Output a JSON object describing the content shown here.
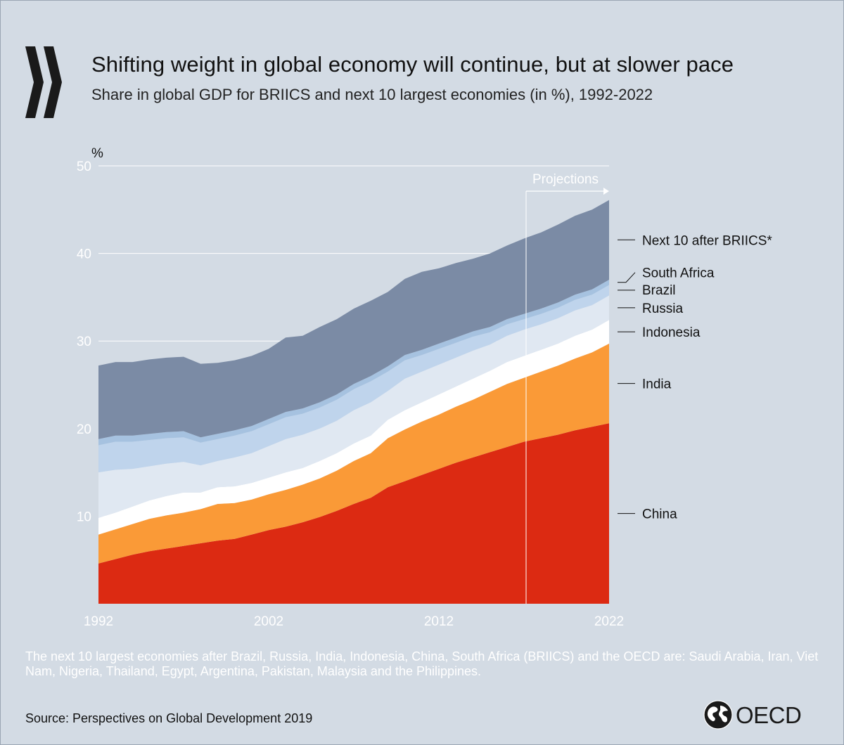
{
  "header": {
    "title": "Shifting weight in global economy will continue, but at slower pace",
    "subtitle": "Share in global GDP for BRIICS and next 10 largest economies (in %), 1992-2022"
  },
  "footer": {
    "note": "The next 10 largest economies after Brazil, Russia, India, Indonesia, China, South Africa (BRIICS) and the OECD are: Saudi Arabia, Iran, Viet Nam, Nigeria, Thailand, Egypt, Argentina, Pakistan, Malaysia and the Philippines.",
    "source": "Source: Perspectives on Global Development 2019"
  },
  "brand": {
    "name": "OECD"
  },
  "colors": {
    "background": "#d3dbe4",
    "gridline": "#ffffff",
    "axis_text": "#ffffff",
    "label_text": "#111111"
  },
  "chart_data": {
    "type": "area",
    "stacked": true,
    "ylabel": "%",
    "ylim": [
      0,
      50
    ],
    "yticks": [
      10,
      20,
      30,
      40,
      50
    ],
    "xlim": [
      1992,
      2022
    ],
    "xticks": [
      1992,
      2002,
      2012,
      2022
    ],
    "annotation": {
      "text": "Projections",
      "from_year": 2017
    },
    "x": [
      1992,
      1993,
      1994,
      1995,
      1996,
      1997,
      1998,
      1999,
      2000,
      2001,
      2002,
      2003,
      2004,
      2005,
      2006,
      2007,
      2008,
      2009,
      2010,
      2011,
      2012,
      2013,
      2014,
      2015,
      2016,
      2017,
      2018,
      2019,
      2020,
      2021,
      2022
    ],
    "series": [
      {
        "name": "China",
        "color": "#dc2a12",
        "values": [
          4.6,
          5.1,
          5.6,
          6.0,
          6.3,
          6.6,
          6.9,
          7.2,
          7.4,
          7.9,
          8.4,
          8.8,
          9.3,
          9.9,
          10.6,
          11.4,
          12.1,
          13.3,
          14.0,
          14.7,
          15.4,
          16.1,
          16.7,
          17.3,
          17.9,
          18.5,
          18.9,
          19.3,
          19.8,
          20.2,
          20.6
        ]
      },
      {
        "name": "India",
        "color": "#fa9a37",
        "values": [
          3.3,
          3.4,
          3.5,
          3.7,
          3.8,
          3.8,
          3.9,
          4.2,
          4.1,
          4.0,
          4.1,
          4.2,
          4.3,
          4.4,
          4.6,
          4.9,
          5.1,
          5.6,
          5.9,
          6.1,
          6.2,
          6.4,
          6.6,
          6.9,
          7.2,
          7.3,
          7.6,
          7.9,
          8.2,
          8.5,
          9.1
        ]
      },
      {
        "name": "Indonesia",
        "color": "#ffffff",
        "values": [
          1.9,
          1.9,
          2.0,
          2.1,
          2.2,
          2.3,
          1.9,
          1.9,
          1.9,
          1.9,
          1.9,
          2.0,
          1.9,
          2.0,
          2.0,
          2.0,
          2.0,
          2.1,
          2.2,
          2.2,
          2.3,
          2.3,
          2.4,
          2.4,
          2.5,
          2.5,
          2.5,
          2.5,
          2.6,
          2.6,
          2.7
        ]
      },
      {
        "name": "Russia",
        "color": "#e0e8f2",
        "values": [
          5.2,
          4.9,
          4.3,
          3.9,
          3.7,
          3.5,
          3.1,
          3.0,
          3.3,
          3.4,
          3.6,
          3.8,
          3.8,
          3.7,
          3.7,
          3.8,
          3.8,
          3.3,
          3.6,
          3.5,
          3.4,
          3.3,
          3.2,
          3.0,
          3.0,
          3.0,
          2.9,
          2.9,
          2.9,
          2.8,
          2.8
        ]
      },
      {
        "name": "Brazil",
        "color": "#bfd4ec",
        "values": [
          3.1,
          3.2,
          3.1,
          3.0,
          2.9,
          2.8,
          2.6,
          2.5,
          2.5,
          2.5,
          2.5,
          2.5,
          2.4,
          2.4,
          2.4,
          2.4,
          2.4,
          2.2,
          2.1,
          1.9,
          1.8,
          1.7,
          1.6,
          1.4,
          1.3,
          1.2,
          1.2,
          1.2,
          1.2,
          1.2,
          1.2
        ]
      },
      {
        "name": "South Africa",
        "color": "#a6c2e0",
        "values": [
          0.7,
          0.7,
          0.7,
          0.7,
          0.7,
          0.7,
          0.6,
          0.6,
          0.6,
          0.6,
          0.6,
          0.6,
          0.6,
          0.6,
          0.6,
          0.6,
          0.6,
          0.6,
          0.6,
          0.6,
          0.6,
          0.6,
          0.6,
          0.6,
          0.6,
          0.6,
          0.6,
          0.6,
          0.6,
          0.6,
          0.6
        ]
      },
      {
        "name": "Next 10 after BRIICS*",
        "color": "#7b8ba5",
        "values": [
          8.4,
          8.4,
          8.4,
          8.5,
          8.5,
          8.5,
          8.4,
          8.1,
          8.0,
          8.0,
          8.0,
          8.5,
          8.3,
          8.6,
          8.6,
          8.6,
          8.6,
          8.5,
          8.7,
          8.9,
          8.6,
          8.5,
          8.3,
          8.4,
          8.4,
          8.6,
          8.7,
          8.9,
          9.0,
          9.1,
          9.1
        ]
      }
    ]
  }
}
